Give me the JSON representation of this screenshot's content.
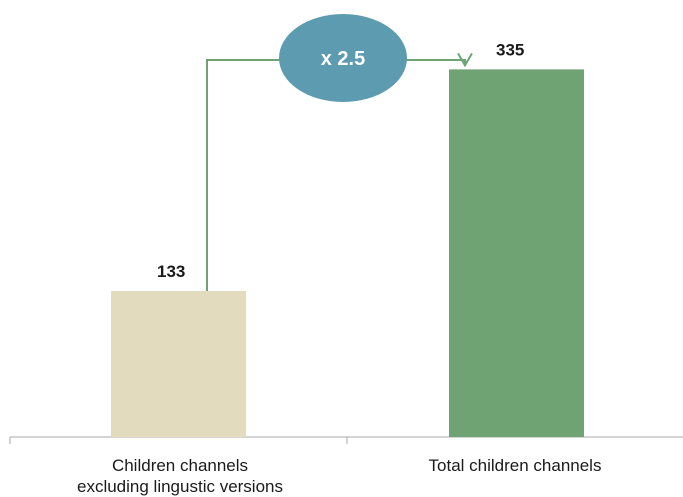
{
  "chart_data": {
    "type": "bar",
    "categories": [
      "Children channels\nexcluding lingustic versions",
      "Total children channels"
    ],
    "values": [
      133,
      335
    ],
    "value_labels": [
      "133",
      "335"
    ],
    "colors": [
      "#e2dbbd",
      "#6fa374"
    ],
    "annotation": {
      "text": "x 2.5",
      "ellipse_color": "#5c9bb0",
      "connector_color": "#6fa374"
    },
    "ylim": [
      0,
      380
    ],
    "grid": false
  }
}
